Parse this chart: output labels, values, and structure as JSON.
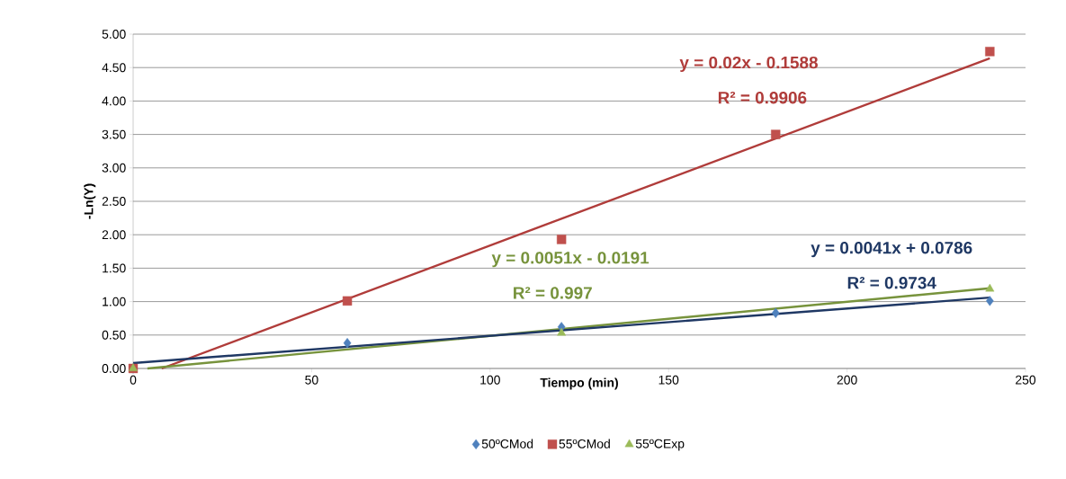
{
  "chart_data": {
    "type": "scatter",
    "xlabel": "Tiempo (min)",
    "ylabel": "-Ln(Y)",
    "xlim": [
      0,
      250
    ],
    "xticks": [
      0,
      50,
      100,
      150,
      200,
      250
    ],
    "ylim": [
      0,
      5
    ],
    "yticks": [
      {
        "value": 0,
        "label": "0.00"
      },
      {
        "value": 0.5,
        "label": "0.50"
      },
      {
        "value": 1,
        "label": "1.00"
      },
      {
        "value": 1.5,
        "label": "1.50"
      },
      {
        "value": 2,
        "label": "2.00"
      },
      {
        "value": 2.5,
        "label": "2.50"
      },
      {
        "value": 3,
        "label": "3.00"
      },
      {
        "value": 3.5,
        "label": "3.50"
      },
      {
        "value": 4,
        "label": "4.00"
      },
      {
        "value": 4.5,
        "label": "4.50"
      },
      {
        "value": 5,
        "label": "5.00"
      }
    ],
    "grid": "y",
    "legend": "bottom",
    "series": [
      {
        "name": "50ºCMod",
        "marker": "diamond",
        "color": "#4f81bd",
        "x": [
          0,
          60,
          120,
          180,
          240
        ],
        "values": [
          0,
          0.38,
          0.62,
          0.83,
          1.01
        ]
      },
      {
        "name": "55ºCMod",
        "marker": "square",
        "color": "#c0504d",
        "x": [
          0,
          60,
          120,
          180,
          240
        ],
        "values": [
          0,
          1.01,
          1.93,
          3.5,
          4.74
        ]
      },
      {
        "name": "55ºCExp",
        "marker": "triangle",
        "color": "#9bbb59",
        "x": [
          0,
          120,
          240
        ],
        "values": [
          0,
          0.53,
          1.19
        ]
      },
      {
        "type": "line",
        "marker": "none",
        "color": "#b03c3a",
        "x": [
          8,
          240
        ],
        "values": [
          0,
          4.64
        ]
      },
      {
        "type": "line",
        "marker": "none",
        "color": "#77933c",
        "x": [
          4,
          240
        ],
        "values": [
          0,
          1.2
        ]
      },
      {
        "type": "line",
        "marker": "none",
        "color": "#1f3864",
        "x": [
          0,
          240
        ],
        "values": [
          0.08,
          1.06
        ]
      }
    ],
    "annotations": [
      "y = 0.02x - 0.1588",
      "R² = 0.9906",
      "y = 0.0051x - 0.0191",
      "R² = 0.997",
      "y = 0.0041x + 0.0786",
      "R² = 0.9734"
    ]
  }
}
